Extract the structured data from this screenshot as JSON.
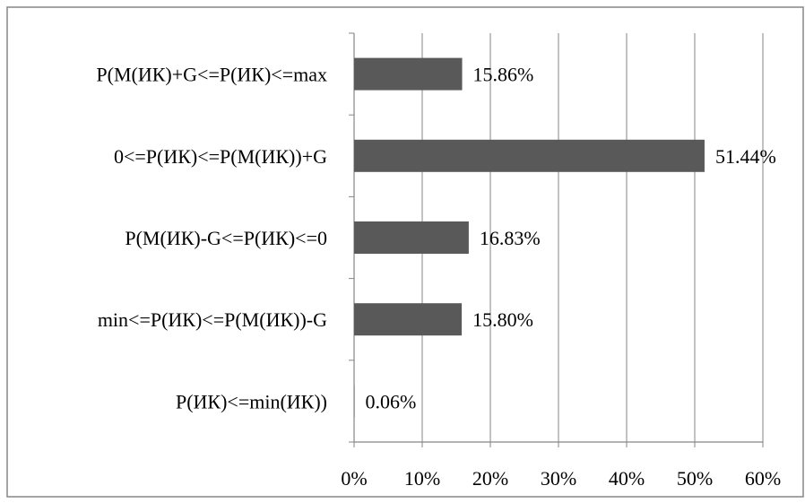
{
  "chart_data": {
    "type": "bar",
    "orientation": "horizontal",
    "categories": [
      "P(M(ИК)+G<=P(ИК)<=max",
      "0<=P(ИК)<=P(M(ИК))+G",
      "P(M(ИК)-G<=P(ИК)<=0",
      "min<=P(ИК)<=P(M(ИК))-G",
      "P(ИК)<=min(ИК))"
    ],
    "values": [
      15.86,
      51.44,
      16.83,
      15.8,
      0.06
    ],
    "data_labels": [
      "15.86%",
      "51.44%",
      "16.83%",
      "15.80%",
      "0.06%"
    ],
    "xlim": [
      0,
      60
    ],
    "x_ticks": [
      0,
      10,
      20,
      30,
      40,
      50,
      60
    ],
    "x_tick_labels": [
      "0%",
      "10%",
      "20%",
      "30%",
      "40%",
      "50%",
      "60%"
    ],
    "grid": "vertical",
    "legend": "none",
    "colors": {
      "bar": "#595959",
      "grid": "#868686",
      "axis": "#868686",
      "border": "#868686"
    }
  }
}
